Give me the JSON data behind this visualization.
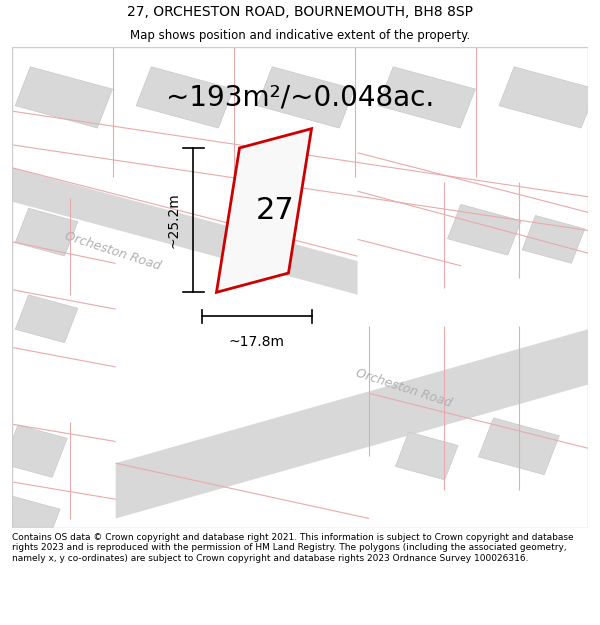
{
  "title": "27, ORCHESTON ROAD, BOURNEMOUTH, BH8 8SP",
  "subtitle": "Map shows position and indicative extent of the property.",
  "area_text": "~193m²/~0.048ac.",
  "property_number": "27",
  "dim_width": "~17.8m",
  "dim_height": "~25.2m",
  "road_label_1": "Orcheston Road",
  "road_label_2": "Orcheston Road",
  "footer": "Contains OS data © Crown copyright and database right 2021. This information is subject to Crown copyright and database rights 2023 and is reproduced with the permission of HM Land Registry. The polygons (including the associated geometry, namely x, y co-ordinates) are subject to Crown copyright and database rights 2023 Ordnance Survey 100026316.",
  "bg_color": "#ffffff",
  "map_bg": "#efefef",
  "road_color": "#d8d8d8",
  "property_fill": "#f8f8f8",
  "property_edge": "#cc0000",
  "block_fill": "#d8d8d8",
  "block_edge": "#c8c8c8",
  "pink_line": "#e8aaaa",
  "title_fontsize": 10,
  "subtitle_fontsize": 8.5,
  "area_fontsize": 20,
  "prop_num_fontsize": 22,
  "dim_fontsize": 10,
  "road_fontsize": 9,
  "footer_fontsize": 6.5
}
